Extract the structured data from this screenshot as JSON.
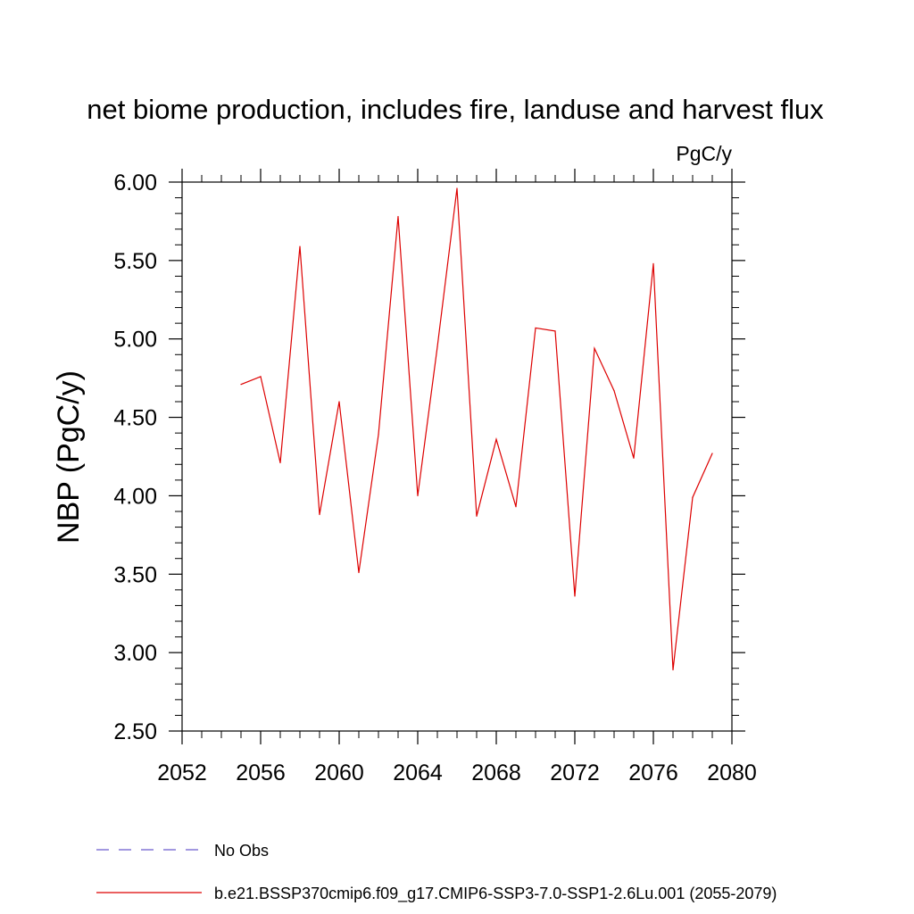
{
  "chart_data": {
    "type": "line",
    "title": "net biome production, includes fire, landuse and harvest flux",
    "units": "PgC/y",
    "ylabel": "NBP  (PgC/y)",
    "xlabel": "",
    "xlim": [
      2052,
      2080
    ],
    "ylim": [
      2.5,
      6.0
    ],
    "x_ticks": [
      "2052",
      "2056",
      "2060",
      "2064",
      "2068",
      "2072",
      "2076",
      "2080"
    ],
    "y_ticks": [
      "2.50",
      "3.00",
      "3.50",
      "4.00",
      "4.50",
      "5.00",
      "5.50",
      "6.00"
    ],
    "grid": false,
    "legend_position": "bottom-left",
    "series": [
      {
        "name": "b.e21.BSSP370cmip6.f09_g17.CMIP6-SSP3-7.0-SSP1-2.6Lu.001 (2055-2079)",
        "color": "#dd0000",
        "style": "solid",
        "x": [
          2055,
          2056,
          2057,
          2058,
          2059,
          2060,
          2061,
          2062,
          2063,
          2064,
          2065,
          2066,
          2067,
          2068,
          2069,
          2070,
          2071,
          2072,
          2073,
          2074,
          2075,
          2076,
          2077,
          2078,
          2079
        ],
        "values": [
          4.71,
          4.76,
          4.21,
          5.59,
          3.88,
          4.6,
          3.51,
          4.39,
          5.78,
          4.0,
          4.95,
          5.96,
          3.87,
          4.36,
          3.93,
          5.07,
          5.05,
          3.36,
          4.94,
          4.67,
          4.24,
          5.48,
          2.89,
          3.99,
          4.27
        ]
      }
    ],
    "legend": [
      {
        "name": "No Obs",
        "color": "#6a5acd",
        "style": "dashed"
      },
      {
        "name": "b.e21.BSSP370cmip6.f09_g17.CMIP6-SSP3-7.0-SSP1-2.6Lu.001 (2055-2079)",
        "color": "#dd0000",
        "style": "solid"
      }
    ]
  }
}
